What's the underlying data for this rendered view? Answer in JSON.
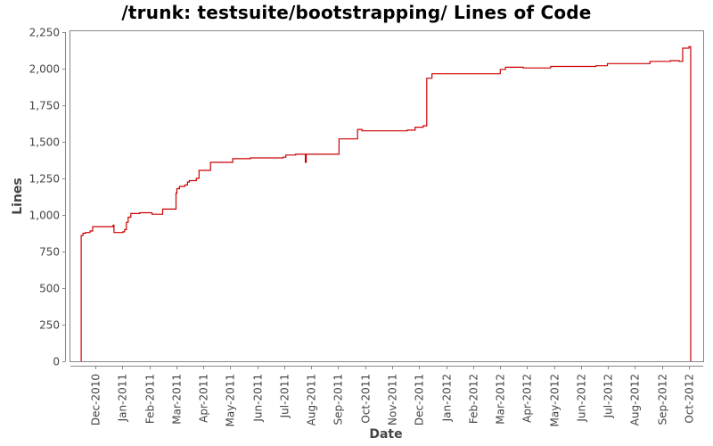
{
  "chart_data": {
    "type": "line",
    "title": "/trunk: testsuite/bootstrapping/ Lines of Code",
    "xlabel": "Date",
    "ylabel": "Lines",
    "ylim": [
      0,
      2250
    ],
    "y_ticks": [
      0,
      250,
      500,
      750,
      1000,
      1250,
      1500,
      1750,
      2000,
      2250
    ],
    "y_tick_labels": [
      "0",
      "250",
      "500",
      "750",
      "1,000",
      "1,250",
      "1,500",
      "1,750",
      "2,000",
      "2,250"
    ],
    "x_tick_labels": [
      "Dec-2010",
      "Jan-2011",
      "Feb-2011",
      "Mar-2011",
      "Apr-2011",
      "May-2011",
      "Jun-2011",
      "Jul-2011",
      "Aug-2011",
      "Sep-2011",
      "Oct-2011",
      "Nov-2011",
      "Dec-2011",
      "Jan-2012",
      "Feb-2012",
      "Mar-2012",
      "Apr-2012",
      "May-2012",
      "Jun-2012",
      "Jul-2012",
      "Aug-2012",
      "Sep-2012",
      "Oct-2012"
    ],
    "grid": false,
    "legend": null,
    "series": [
      {
        "name": "Lines of Code",
        "color": "#cc0000",
        "step": true,
        "points": [
          [
            "2010-11-15",
            0
          ],
          [
            "2010-11-15",
            860
          ],
          [
            "2010-11-17",
            875
          ],
          [
            "2010-11-20",
            880
          ],
          [
            "2010-11-25",
            890
          ],
          [
            "2010-11-28",
            920
          ],
          [
            "2010-12-20",
            920
          ],
          [
            "2010-12-21",
            930
          ],
          [
            "2010-12-22",
            880
          ],
          [
            "2011-01-01",
            885
          ],
          [
            "2011-01-03",
            900
          ],
          [
            "2011-01-05",
            950
          ],
          [
            "2011-01-07",
            985
          ],
          [
            "2011-01-10",
            1010
          ],
          [
            "2011-01-20",
            1015
          ],
          [
            "2011-02-01",
            1015
          ],
          [
            "2011-02-03",
            1005
          ],
          [
            "2011-02-15",
            1040
          ],
          [
            "2011-03-01",
            1040
          ],
          [
            "2011-03-02",
            1150
          ],
          [
            "2011-03-03",
            1180
          ],
          [
            "2011-03-06",
            1195
          ],
          [
            "2011-03-12",
            1205
          ],
          [
            "2011-03-15",
            1225
          ],
          [
            "2011-03-17",
            1235
          ],
          [
            "2011-03-25",
            1250
          ],
          [
            "2011-03-28",
            1305
          ],
          [
            "2011-04-10",
            1360
          ],
          [
            "2011-05-05",
            1385
          ],
          [
            "2011-05-25",
            1390
          ],
          [
            "2011-07-01",
            1395
          ],
          [
            "2011-07-04",
            1410
          ],
          [
            "2011-07-15",
            1415
          ],
          [
            "2011-07-25",
            1415
          ],
          [
            "2011-07-26",
            1360
          ],
          [
            "2011-07-27",
            1415
          ],
          [
            "2011-09-01",
            1415
          ],
          [
            "2011-09-02",
            1520
          ],
          [
            "2011-09-22",
            1520
          ],
          [
            "2011-09-23",
            1585
          ],
          [
            "2011-09-28",
            1575
          ],
          [
            "2011-10-15",
            1575
          ],
          [
            "2011-11-18",
            1580
          ],
          [
            "2011-11-27",
            1600
          ],
          [
            "2011-12-06",
            1610
          ],
          [
            "2011-12-10",
            1935
          ],
          [
            "2011-12-16",
            1965
          ],
          [
            "2012-03-01",
            1965
          ],
          [
            "2012-03-02",
            1995
          ],
          [
            "2012-03-08",
            2010
          ],
          [
            "2012-03-28",
            2005
          ],
          [
            "2012-04-28",
            2015
          ],
          [
            "2012-06-18",
            2020
          ],
          [
            "2012-07-01",
            2035
          ],
          [
            "2012-08-18",
            2050
          ],
          [
            "2012-09-10",
            2055
          ],
          [
            "2012-09-20",
            2050
          ],
          [
            "2012-09-24",
            2140
          ],
          [
            "2012-10-01",
            2150
          ],
          [
            "2012-10-03",
            2150
          ],
          [
            "2012-10-03",
            0
          ]
        ]
      }
    ]
  }
}
